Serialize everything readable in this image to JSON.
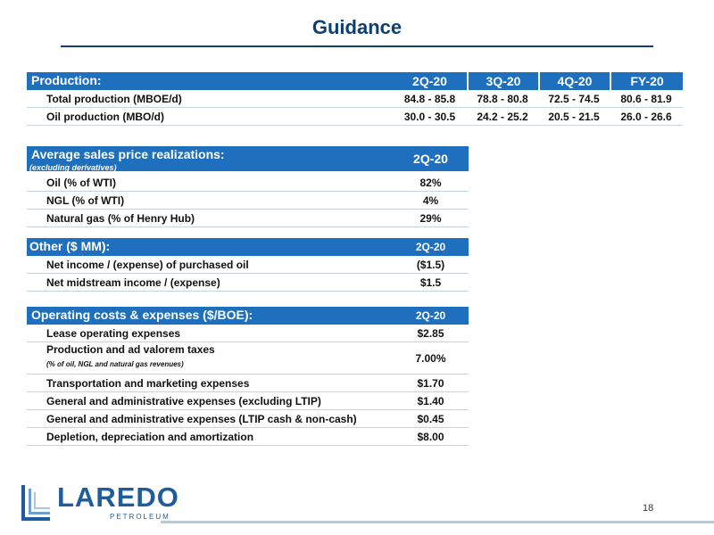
{
  "title": "Guidance",
  "production": {
    "header": "Production:",
    "columns": [
      "2Q-20",
      "3Q-20",
      "4Q-20",
      "FY-20"
    ],
    "rows": [
      {
        "label": "Total production (MBOE/d)",
        "values": [
          "84.8 - 85.8",
          "78.8 - 80.8",
          "72.5 - 74.5",
          "80.6 - 81.9"
        ]
      },
      {
        "label": "Oil production (MBO/d)",
        "values": [
          "30.0 - 30.5",
          "24.2 - 25.2",
          "20.5 - 21.5",
          "26.0 - 26.6"
        ]
      }
    ]
  },
  "pricing": {
    "header": "Average sales price realizations:",
    "subheader": "(excluding derivatives)",
    "column": "2Q-20",
    "rows": [
      {
        "label": "Oil (% of WTI)",
        "value": "82%"
      },
      {
        "label": "NGL (% of WTI)",
        "value": "4%"
      },
      {
        "label": "Natural gas (% of Henry Hub)",
        "value": "29%"
      }
    ]
  },
  "other": {
    "header": "Other ($ MM):",
    "column": "2Q-20",
    "rows": [
      {
        "label": "Net income / (expense) of purchased oil",
        "value": "($1.5)"
      },
      {
        "label": "Net midstream income / (expense)",
        "value": "$1.5"
      }
    ]
  },
  "opex": {
    "header": "Operating costs & expenses ($/BOE):",
    "column": "2Q-20",
    "rows": [
      {
        "label": "Lease operating expenses",
        "value": "$2.85"
      },
      {
        "label": "Production and ad valorem taxes",
        "note": "(% of oil, NGL and natural gas revenues)",
        "value": "7.00%"
      },
      {
        "label": "Transportation and marketing expenses",
        "value": "$1.70"
      },
      {
        "label": "General and administrative expenses (excluding LTIP)",
        "value": "$1.40"
      },
      {
        "label": "General and administrative expenses (LTIP cash & non-cash)",
        "value": "$0.45"
      },
      {
        "label": "Depletion, depreciation and amortization",
        "value": "$8.00"
      }
    ]
  },
  "logo": {
    "name": "LAREDO",
    "subtitle": "PETROLEUM",
    "icon": "laredo-l-mark-icon",
    "color": "#1f5c9c"
  },
  "page_number": "18",
  "colors": {
    "header_bg": "#1f6fbf",
    "title": "#0d3f73"
  }
}
